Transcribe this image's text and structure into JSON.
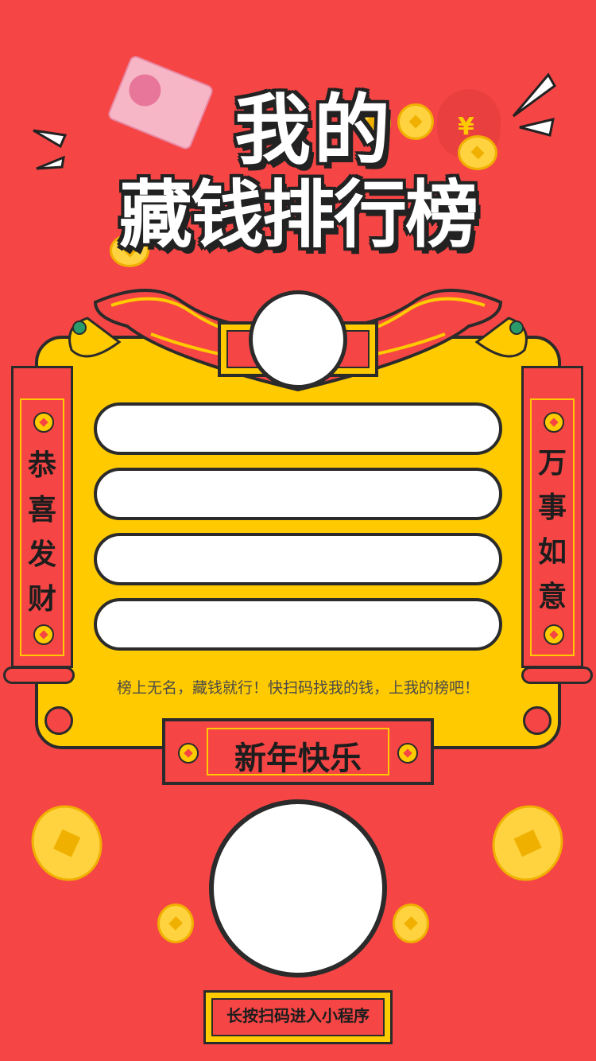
{
  "title": {
    "line1": "我的",
    "line2": "藏钱排行榜"
  },
  "couplet_left": {
    "chars": [
      "恭",
      "喜",
      "发",
      "财"
    ]
  },
  "couplet_right": {
    "chars": [
      "万",
      "事",
      "如",
      "意"
    ]
  },
  "ranking_rows": [
    "",
    "",
    "",
    ""
  ],
  "caption": "榜上无名，藏钱就行！快扫码找我的钱，上我的榜吧！",
  "banner": "新年快乐",
  "cta": "长按扫码进入小程序",
  "colors": {
    "background": "#f64545",
    "board": "#ffcb00",
    "outline": "#2b2b2b",
    "white": "#ffffff"
  }
}
